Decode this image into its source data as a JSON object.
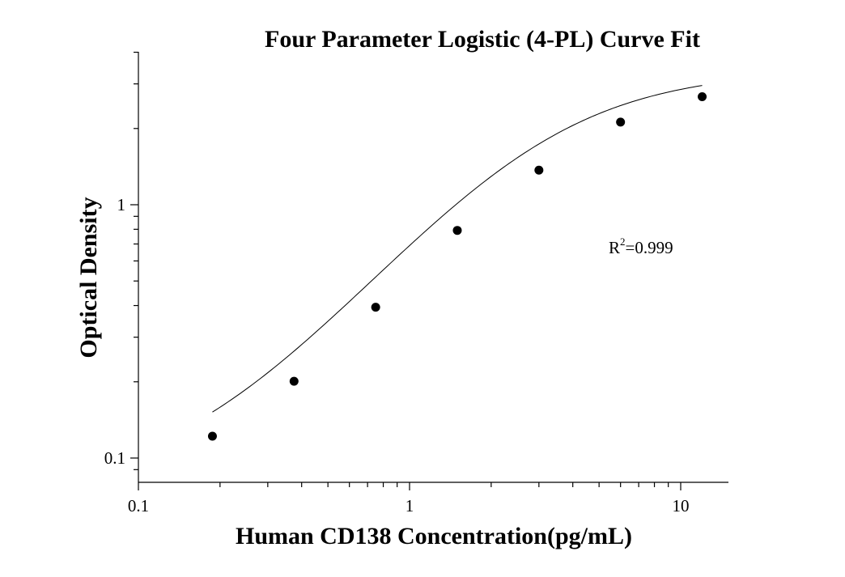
{
  "chart_data": {
    "type": "scatter",
    "title": "Four Parameter Logistic (4-PL) Curve Fit",
    "xlabel": "Human CD138 Concentration(pg/mL)",
    "ylabel": "Optical Density",
    "x_scale": "log",
    "y_scale": "log",
    "xlim": [
      0.1,
      15
    ],
    "ylim": [
      0.082,
      4.0
    ],
    "x_ticks": [
      "0.1",
      "1",
      "10"
    ],
    "y_ticks": [
      "0.1",
      "1"
    ],
    "series": [
      {
        "x": [
          0.1875,
          0.375,
          0.75,
          1.5,
          3,
          6,
          12
        ],
        "y": [
          0.122,
          0.201,
          0.394,
          0.792,
          1.37,
          2.12,
          2.67
        ]
      }
    ],
    "fit": {
      "model": "4PL",
      "A": 0.075,
      "B": 1.35,
      "C": 3.0,
      "D": 3.4
    },
    "annotation": {
      "r_label": "R",
      "r_exp": "2",
      "r_value": "=0.999"
    }
  }
}
